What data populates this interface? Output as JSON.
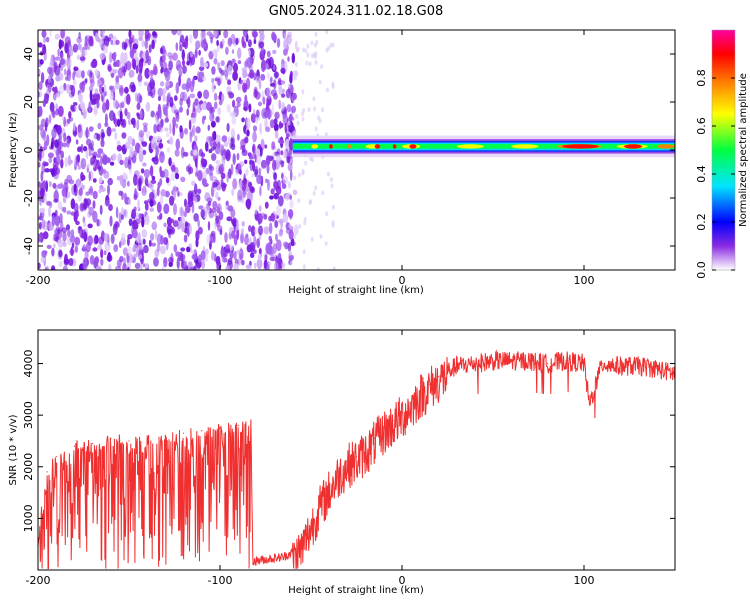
{
  "title": "GN05.2024.311.02.18.G08",
  "chart_data": [
    {
      "type": "heatmap",
      "xlabel": "Height of straight line (km)",
      "ylabel": "Frequency (Hz)",
      "xlim": [
        -200,
        150
      ],
      "ylim": [
        -50,
        50
      ],
      "x_ticks": [
        -200,
        -100,
        0,
        100
      ],
      "y_ticks": [
        -40,
        -20,
        0,
        20,
        40
      ],
      "colorbar": {
        "label": "Normalized spectral amplitude",
        "range": [
          0,
          1
        ],
        "ticks": [
          0.0,
          0.2,
          0.4,
          0.6,
          0.8
        ],
        "tick_labels": [
          "0.0",
          "0.2",
          "0.4",
          "0.6",
          "0.8"
        ],
        "colors": [
          "#ffffff",
          "#8a2be2",
          "#0000ff",
          "#00e5ff",
          "#00ff40",
          "#ffff00",
          "#ff8000",
          "#ff0000",
          "#ff00a0"
        ]
      },
      "regions": [
        {
          "x_range": [
            -200,
            -58
          ],
          "description": "broadband noise",
          "amplitude_range": [
            0.0,
            0.15
          ]
        },
        {
          "x_range": [
            -60,
            150
          ],
          "frequency": 1.5,
          "amplitude_range": [
            0.4,
            1.0
          ]
        }
      ],
      "grid": false
    },
    {
      "type": "line",
      "xlabel": "Height of straight line (km)",
      "ylabel": "SNR (10 * v/v)",
      "xlim": [
        -200,
        150
      ],
      "ylim": [
        0,
        4650
      ],
      "x_ticks": [
        -200,
        -100,
        0,
        100
      ],
      "y_ticks": [
        1000,
        2000,
        3000,
        4000
      ],
      "color": "#f03030",
      "grid": false,
      "series": [
        {
          "x": [
            -200,
            -195,
            -190,
            -180,
            -170,
            -160,
            -150,
            -140,
            -130,
            -120,
            -110,
            -100,
            -90,
            -83,
            -82,
            -75,
            -65,
            -60,
            -55,
            -50,
            -45,
            -40,
            -35,
            -30,
            -25,
            -20,
            -15,
            -10,
            -5,
            0,
            5,
            10,
            15,
            20,
            25,
            30,
            40,
            50,
            60,
            70,
            80,
            90,
            100,
            103,
            110,
            120,
            130,
            140,
            150
          ],
          "y": [
            700,
            1900,
            2200,
            2400,
            2450,
            2550,
            2500,
            2500,
            2600,
            2650,
            2700,
            2750,
            2800,
            2850,
            120,
            150,
            200,
            300,
            500,
            900,
            1300,
            1600,
            1900,
            2100,
            2200,
            2350,
            2550,
            2750,
            2900,
            3050,
            3250,
            3450,
            3600,
            3750,
            3850,
            3950,
            4000,
            4050,
            4050,
            4050,
            4000,
            4050,
            4000,
            3200,
            4000,
            3950,
            3950,
            3900,
            3800
          ]
        }
      ]
    }
  ]
}
